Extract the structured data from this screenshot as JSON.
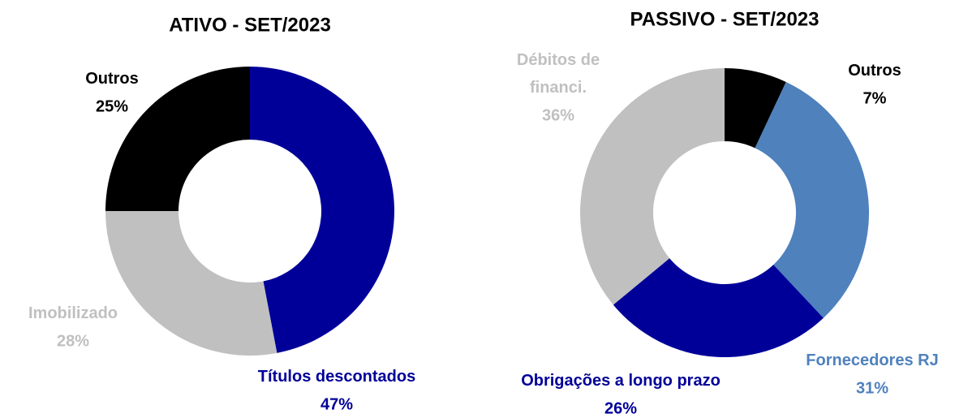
{
  "chart_data": [
    {
      "type": "donut",
      "title": "ATIVO - SET/2023",
      "categories": [
        "Títulos descontados",
        "Imobilizado",
        "Outros"
      ],
      "values": [
        47,
        28,
        25
      ],
      "value_labels": [
        "47%",
        "28%",
        "25%"
      ],
      "colors": [
        "#000099",
        "#c0c0c0",
        "#000000"
      ]
    },
    {
      "type": "donut",
      "title": "PASSIVO - SET/2023",
      "categories": [
        "Outros",
        "Fornecedores RJ",
        "Obrigações a longo prazo",
        "Débitos de\nfinanci."
      ],
      "values": [
        7,
        31,
        26,
        36
      ],
      "value_labels": [
        "7%",
        "31%",
        "26%",
        "36%"
      ],
      "colors": [
        "#000000",
        "#4f81bd",
        "#000099",
        "#c0c0c0"
      ]
    }
  ]
}
